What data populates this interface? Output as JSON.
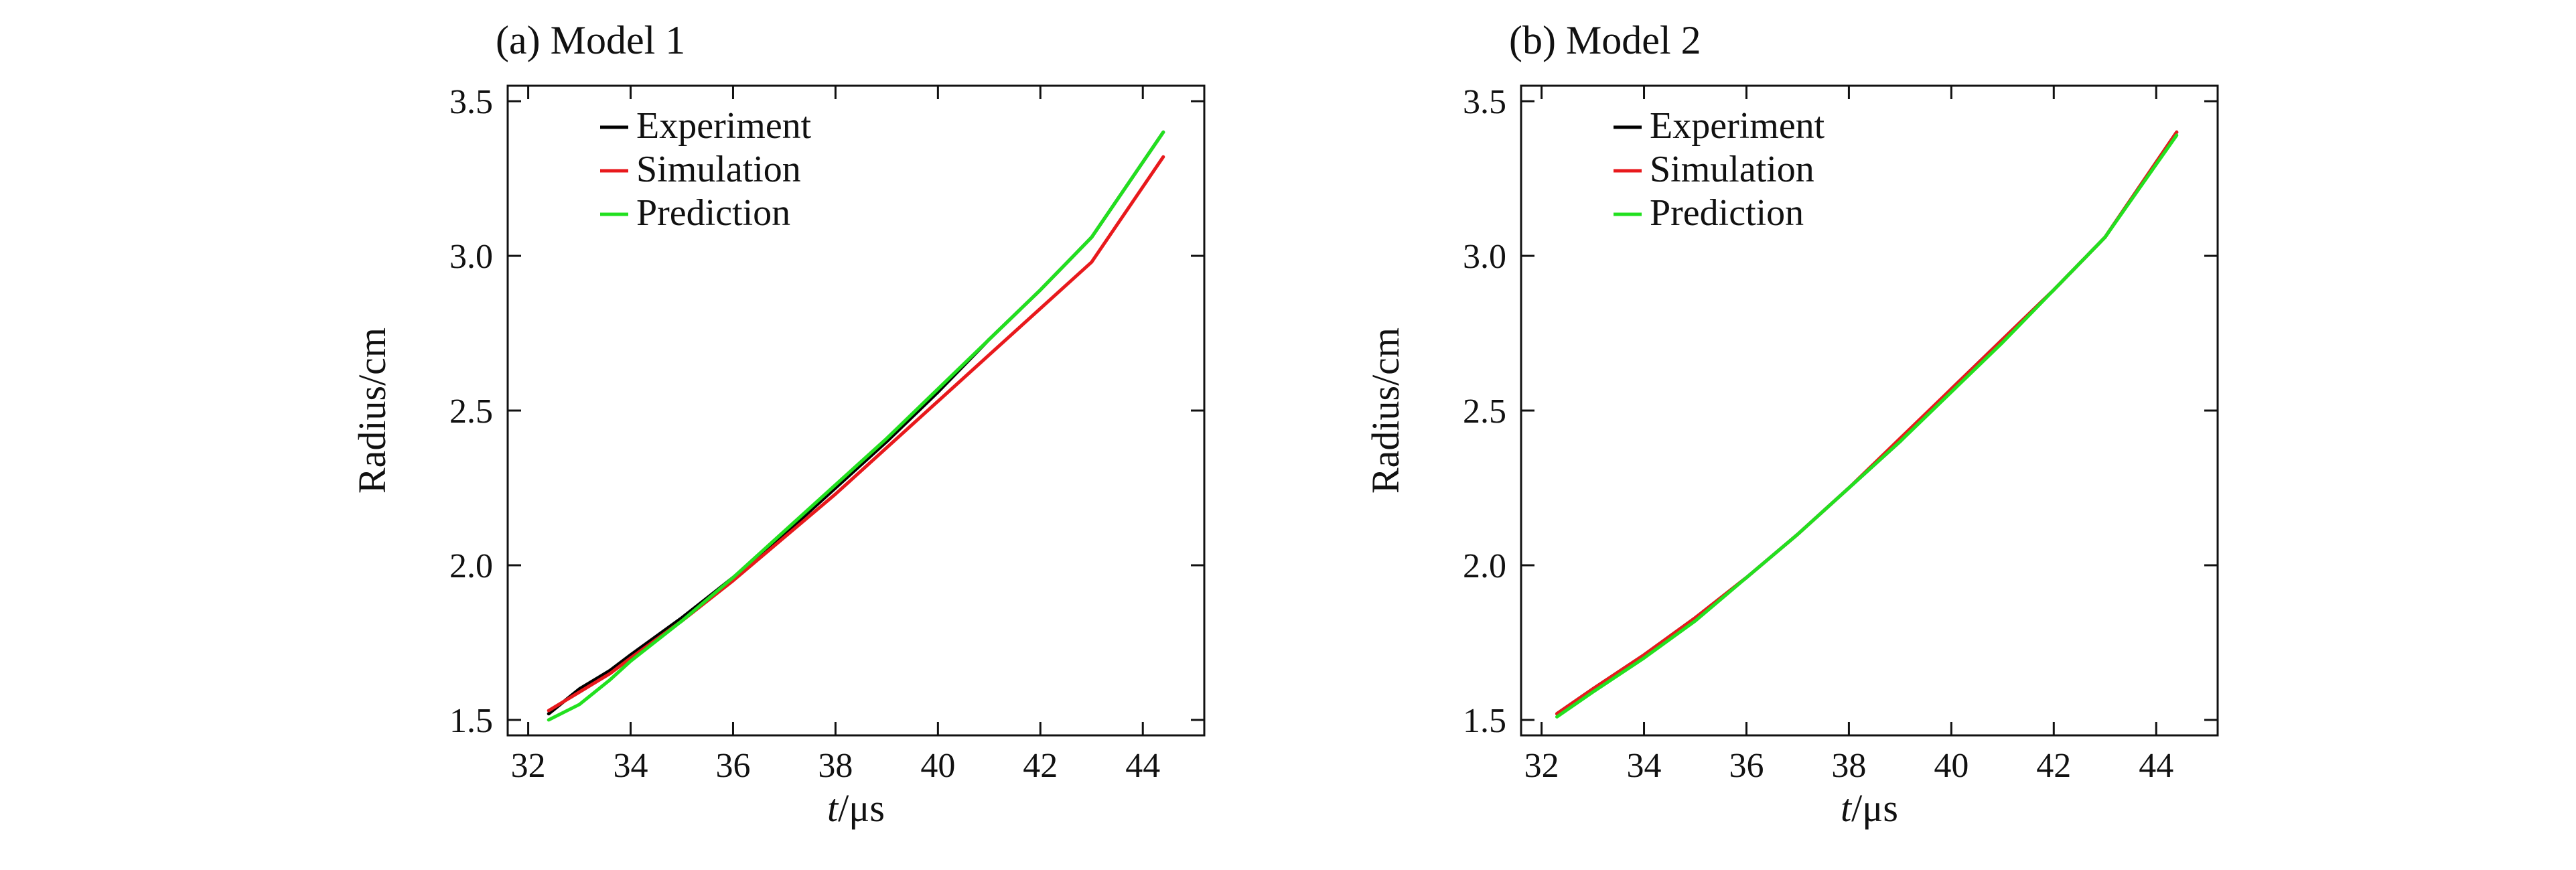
{
  "colors": {
    "experiment": "#000000",
    "simulation": "#e8191c",
    "prediction": "#22e01f"
  },
  "chart_data": [
    {
      "type": "line",
      "title": "(a) Model 1",
      "xlabel_italic": "t",
      "xlabel_unit": "/μs",
      "ylabel": "Radius/cm",
      "xlim": [
        31.6,
        45.2
      ],
      "ylim": [
        1.45,
        3.55
      ],
      "xticks": [
        32,
        34,
        36,
        38,
        40,
        42,
        44
      ],
      "yticks": [
        1.5,
        2.0,
        2.5,
        3.0,
        3.5
      ],
      "xtick_labels": [
        "32",
        "34",
        "36",
        "38",
        "40",
        "42",
        "44"
      ],
      "ytick_labels": [
        "1.5",
        "2.0",
        "2.5",
        "3.0",
        "3.5"
      ],
      "legend_position": "top-left",
      "grid": false,
      "series": [
        {
          "name": "Experiment",
          "color_key": "experiment",
          "x": [
            32.4,
            33.0,
            33.6,
            34.0,
            35.0,
            36.0,
            37.0,
            38.0,
            39.0,
            40.0,
            41.0,
            42.0,
            43.0,
            44.4
          ],
          "y": [
            1.52,
            1.6,
            1.66,
            1.71,
            1.83,
            1.96,
            2.1,
            2.25,
            2.4,
            2.56,
            2.73,
            2.89,
            3.06,
            3.4
          ]
        },
        {
          "name": "Simulation",
          "color_key": "simulation",
          "x": [
            32.4,
            33.0,
            33.6,
            34.0,
            35.0,
            36.0,
            37.0,
            38.0,
            39.0,
            40.0,
            41.0,
            42.0,
            43.0,
            44.4
          ],
          "y": [
            1.53,
            1.59,
            1.65,
            1.7,
            1.82,
            1.95,
            2.09,
            2.23,
            2.38,
            2.53,
            2.68,
            2.83,
            2.98,
            3.32
          ]
        },
        {
          "name": "Prediction",
          "color_key": "prediction",
          "x": [
            32.4,
            33.0,
            33.6,
            34.0,
            35.0,
            36.0,
            37.0,
            38.0,
            39.0,
            40.0,
            41.0,
            42.0,
            43.0,
            44.4
          ],
          "y": [
            1.5,
            1.55,
            1.63,
            1.69,
            1.82,
            1.96,
            2.11,
            2.26,
            2.41,
            2.57,
            2.73,
            2.89,
            3.06,
            3.4
          ]
        }
      ]
    },
    {
      "type": "line",
      "title": "(b) Model 2",
      "xlabel_italic": "t",
      "xlabel_unit": "/μs",
      "ylabel": "Radius/cm",
      "xlim": [
        31.6,
        45.2
      ],
      "ylim": [
        1.45,
        3.55
      ],
      "xticks": [
        32,
        34,
        36,
        38,
        40,
        42,
        44
      ],
      "yticks": [
        1.5,
        2.0,
        2.5,
        3.0,
        3.5
      ],
      "xtick_labels": [
        "32",
        "34",
        "36",
        "38",
        "40",
        "42",
        "44"
      ],
      "ytick_labels": [
        "1.5",
        "2.0",
        "2.5",
        "3.0",
        "3.5"
      ],
      "legend_position": "top-left",
      "grid": false,
      "series": [
        {
          "name": "Experiment",
          "color_key": "experiment",
          "x": [
            32.3,
            33.0,
            34.0,
            35.0,
            36.0,
            37.0,
            38.0,
            39.0,
            40.0,
            41.0,
            42.0,
            43.0,
            44.4
          ],
          "y": [
            1.52,
            1.6,
            1.71,
            1.83,
            1.96,
            2.1,
            2.25,
            2.4,
            2.57,
            2.73,
            2.89,
            3.06,
            3.4
          ]
        },
        {
          "name": "Simulation",
          "color_key": "simulation",
          "x": [
            32.3,
            33.0,
            34.0,
            35.0,
            36.0,
            37.0,
            38.0,
            39.0,
            40.0,
            41.0,
            42.0,
            43.0,
            44.4
          ],
          "y": [
            1.52,
            1.6,
            1.71,
            1.83,
            1.96,
            2.1,
            2.25,
            2.41,
            2.57,
            2.73,
            2.89,
            3.06,
            3.4
          ]
        },
        {
          "name": "Prediction",
          "color_key": "prediction",
          "x": [
            32.3,
            33.0,
            34.0,
            35.0,
            36.0,
            37.0,
            38.0,
            39.0,
            40.0,
            41.0,
            42.0,
            43.0,
            44.4
          ],
          "y": [
            1.51,
            1.59,
            1.7,
            1.82,
            1.96,
            2.1,
            2.25,
            2.4,
            2.56,
            2.72,
            2.89,
            3.06,
            3.39
          ]
        }
      ]
    }
  ]
}
